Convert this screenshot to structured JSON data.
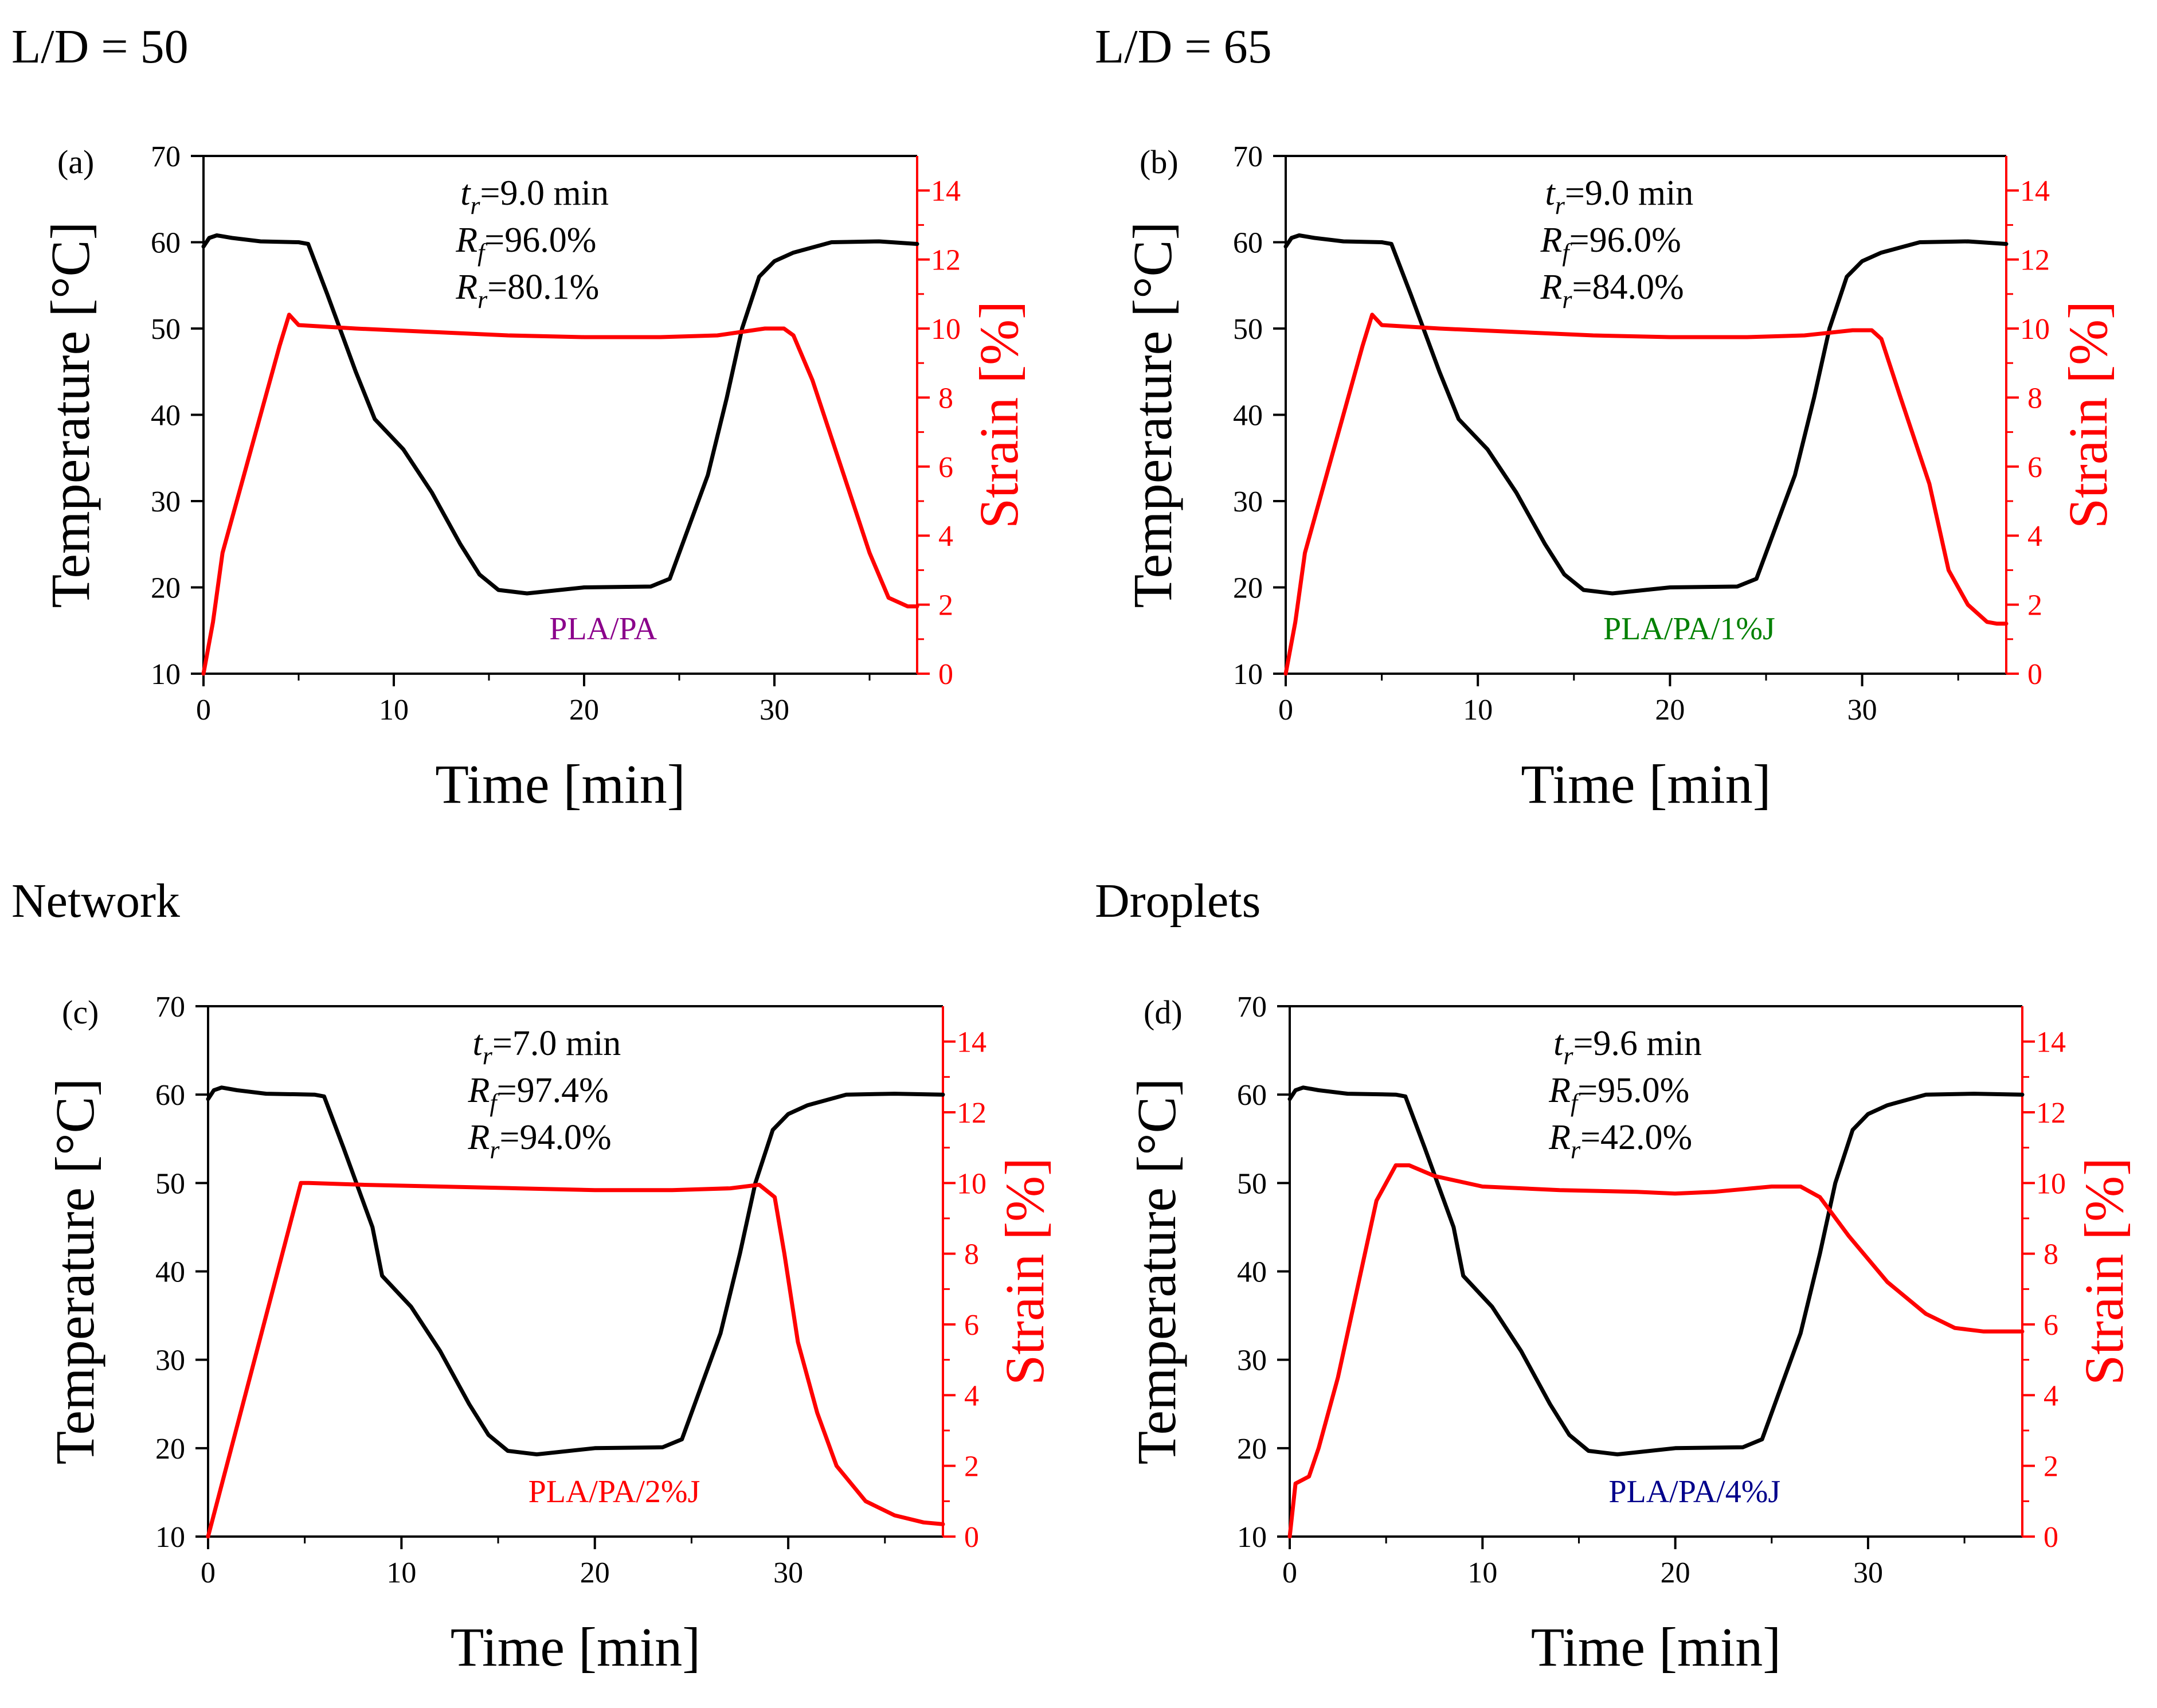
{
  "headings": {
    "top_left": "L/D = 50",
    "top_right": "L/D = 65",
    "bottom_left": "Network",
    "bottom_right": "Droplets"
  },
  "colors": {
    "temperature": "#000000",
    "strain": "#ff0000",
    "pla_pa": "#8b008b",
    "pla_pa_1j": "#008000",
    "pla_pa_2j": "#ff0000",
    "pla_pa_4j": "#00008b"
  },
  "chart_data": [
    {
      "type": "line",
      "panel_label": "(a)",
      "sample": "PLA/PA",
      "sample_color": "#8b008b",
      "annotations": {
        "tr": "=9.0 min",
        "rf": "=96.0%",
        "rr": "=80.1%"
      },
      "xlabel": "Time [min]",
      "ylabel": "Temperature [°C]",
      "y2label": "Strain [%]",
      "xlim": [
        0,
        37.5
      ],
      "ylim": [
        10,
        70
      ],
      "y2lim": [
        0,
        15
      ],
      "xticks": [
        0,
        10,
        20,
        30
      ],
      "yticks": [
        10,
        20,
        30,
        40,
        50,
        60,
        70
      ],
      "y2ticks": [
        0,
        2,
        4,
        6,
        8,
        10,
        12,
        14
      ],
      "series": [
        {
          "name": "Temperature",
          "axis": "left",
          "x": [
            0,
            0.3,
            0.7,
            1.5,
            3,
            5,
            5.5,
            6.5,
            8,
            9,
            10.5,
            12,
            13.5,
            14.5,
            15.5,
            17,
            20,
            23.5,
            24.5,
            25.5,
            26.5,
            27.5,
            28.3,
            29.2,
            30,
            31,
            33,
            35.5,
            37.5
          ],
          "y": [
            59.5,
            60.5,
            60.8,
            60.5,
            60.1,
            60,
            59.8,
            54,
            45,
            39.5,
            36,
            31,
            25,
            21.5,
            19.7,
            19.3,
            20,
            20.1,
            21,
            27,
            33,
            42,
            50,
            56,
            57.8,
            58.8,
            60,
            60.1,
            59.8
          ]
        },
        {
          "name": "Strain",
          "axis": "right",
          "x": [
            0,
            0.5,
            1,
            2,
            3,
            4,
            4.5,
            5,
            8,
            12,
            16,
            20,
            24,
            27,
            29.5,
            30.5,
            31,
            32,
            33.5,
            35,
            36,
            37,
            37.5
          ],
          "y": [
            0,
            1.5,
            3.5,
            5.5,
            7.5,
            9.5,
            10.4,
            10.1,
            10,
            9.9,
            9.8,
            9.75,
            9.75,
            9.8,
            10,
            10,
            9.8,
            8.5,
            6,
            3.5,
            2.2,
            1.95,
            1.95
          ]
        }
      ]
    },
    {
      "type": "line",
      "panel_label": "(b)",
      "sample": "PLA/PA/1%J",
      "sample_color": "#008000",
      "annotations": {
        "tr": "=9.0 min",
        "rf": "=96.0%",
        "rr": "=84.0%"
      },
      "xlabel": "Time [min]",
      "ylabel": "Temperature [°C]",
      "y2label": "Strain [%]",
      "xlim": [
        0,
        37.5
      ],
      "ylim": [
        10,
        70
      ],
      "y2lim": [
        0,
        15
      ],
      "xticks": [
        0,
        10,
        20,
        30
      ],
      "yticks": [
        10,
        20,
        30,
        40,
        50,
        60,
        70
      ],
      "y2ticks": [
        0,
        2,
        4,
        6,
        8,
        10,
        12,
        14
      ],
      "series": [
        {
          "name": "Temperature",
          "axis": "left",
          "x": [
            0,
            0.3,
            0.7,
            1.5,
            3,
            5,
            5.5,
            6.5,
            8,
            9,
            10.5,
            12,
            13.5,
            14.5,
            15.5,
            17,
            20,
            23.5,
            24.5,
            25.5,
            26.5,
            27.5,
            28.3,
            29.2,
            30,
            31,
            33,
            35.5,
            37.5
          ],
          "y": [
            59.5,
            60.5,
            60.8,
            60.5,
            60.1,
            60,
            59.8,
            54,
            45,
            39.5,
            36,
            31,
            25,
            21.5,
            19.7,
            19.3,
            20,
            20.1,
            21,
            27,
            33,
            42,
            50,
            56,
            57.8,
            58.8,
            60,
            60.1,
            59.8
          ]
        },
        {
          "name": "Strain",
          "axis": "right",
          "x": [
            0,
            0.5,
            1,
            2,
            3,
            4,
            4.5,
            5,
            8,
            12,
            16,
            20,
            24,
            27,
            29.5,
            30.5,
            31,
            32,
            33.5,
            34.5,
            35.5,
            36.5,
            37,
            37.5
          ],
          "y": [
            0,
            1.5,
            3.5,
            5.5,
            7.5,
            9.5,
            10.4,
            10.1,
            10,
            9.9,
            9.8,
            9.75,
            9.75,
            9.8,
            9.95,
            9.95,
            9.7,
            8,
            5.5,
            3,
            2,
            1.5,
            1.45,
            1.45
          ]
        }
      ]
    },
    {
      "type": "line",
      "panel_label": "(c)",
      "sample": "PLA/PA/2%J",
      "sample_color": "#ff0000",
      "annotations": {
        "tr": "=7.0 min",
        "rf": "=97.4%",
        "rr": "=94.0%"
      },
      "xlabel": "Time [min]",
      "ylabel": "Temperature [°C]",
      "y2label": "Strain [%]",
      "xlim": [
        0,
        38
      ],
      "ylim": [
        10,
        70
      ],
      "y2lim": [
        0,
        15
      ],
      "xticks": [
        0,
        10,
        20,
        30
      ],
      "yticks": [
        10,
        20,
        30,
        40,
        50,
        60,
        70
      ],
      "y2ticks": [
        0,
        2,
        4,
        6,
        8,
        10,
        12,
        14
      ],
      "series": [
        {
          "name": "Temperature",
          "axis": "left",
          "x": [
            0,
            0.3,
            0.7,
            1.5,
            3,
            5.5,
            6,
            7,
            8.5,
            9,
            10.5,
            12,
            13.5,
            14.5,
            15.5,
            17,
            20,
            23.5,
            24.5,
            25.5,
            26.5,
            27.5,
            28.3,
            29.2,
            30,
            31,
            33,
            35.5,
            38
          ],
          "y": [
            59.5,
            60.5,
            60.8,
            60.5,
            60.1,
            60,
            59.8,
            54,
            45,
            39.5,
            36,
            31,
            25,
            21.5,
            19.7,
            19.3,
            20,
            20.1,
            21,
            27,
            33,
            42,
            50,
            56,
            57.8,
            58.8,
            60,
            60.1,
            60
          ]
        },
        {
          "name": "Strain",
          "axis": "right",
          "x": [
            0,
            2.5,
            4.8,
            5.2,
            8,
            12,
            16,
            20,
            24,
            27,
            28.5,
            29.3,
            29.8,
            30.5,
            31.5,
            32.5,
            34,
            35.5,
            37,
            38
          ],
          "y": [
            0,
            5.2,
            10,
            10,
            9.95,
            9.9,
            9.85,
            9.8,
            9.8,
            9.85,
            9.95,
            9.6,
            8,
            5.5,
            3.5,
            2,
            1,
            0.6,
            0.4,
            0.35
          ]
        }
      ]
    },
    {
      "type": "line",
      "panel_label": "(d)",
      "sample": "PLA/PA/4%J",
      "sample_color": "#00008b",
      "annotations": {
        "tr": "=9.6 min",
        "rf": "=95.0%",
        "rr": "=42.0%"
      },
      "xlabel": "Time [min]",
      "ylabel": "Temperature [°C]",
      "y2label": "Strain [%]",
      "xlim": [
        0,
        38
      ],
      "ylim": [
        10,
        70
      ],
      "y2lim": [
        0,
        15
      ],
      "xticks": [
        0,
        10,
        20,
        30
      ],
      "yticks": [
        10,
        20,
        30,
        40,
        50,
        60,
        70
      ],
      "y2ticks": [
        0,
        2,
        4,
        6,
        8,
        10,
        12,
        14
      ],
      "series": [
        {
          "name": "Temperature",
          "axis": "left",
          "x": [
            0,
            0.3,
            0.7,
            1.5,
            3,
            5.5,
            6,
            7,
            8.5,
            9,
            10.5,
            12,
            13.5,
            14.5,
            15.5,
            17,
            20,
            23.5,
            24.5,
            25.5,
            26.5,
            27.5,
            28.3,
            29.2,
            30,
            31,
            33,
            35.5,
            38
          ],
          "y": [
            59.5,
            60.5,
            60.8,
            60.5,
            60.1,
            60,
            59.8,
            54,
            45,
            39.5,
            36,
            31,
            25,
            21.5,
            19.7,
            19.3,
            20,
            20.1,
            21,
            27,
            33,
            42,
            50,
            56,
            57.8,
            58.8,
            60,
            60.1,
            60
          ]
        },
        {
          "name": "Strain",
          "axis": "right",
          "x": [
            0,
            0.3,
            1,
            1.5,
            2.5,
            3.5,
            4.5,
            5.5,
            6.2,
            7.5,
            10,
            14,
            18,
            20,
            22,
            23,
            25,
            26.5,
            27.5,
            29,
            31,
            33,
            34.5,
            36,
            38
          ],
          "y": [
            0,
            1.5,
            1.7,
            2.5,
            4.5,
            7,
            9.5,
            10.5,
            10.5,
            10.2,
            9.9,
            9.8,
            9.75,
            9.7,
            9.75,
            9.8,
            9.9,
            9.9,
            9.6,
            8.5,
            7.2,
            6.3,
            5.9,
            5.8,
            5.8
          ]
        }
      ]
    }
  ]
}
